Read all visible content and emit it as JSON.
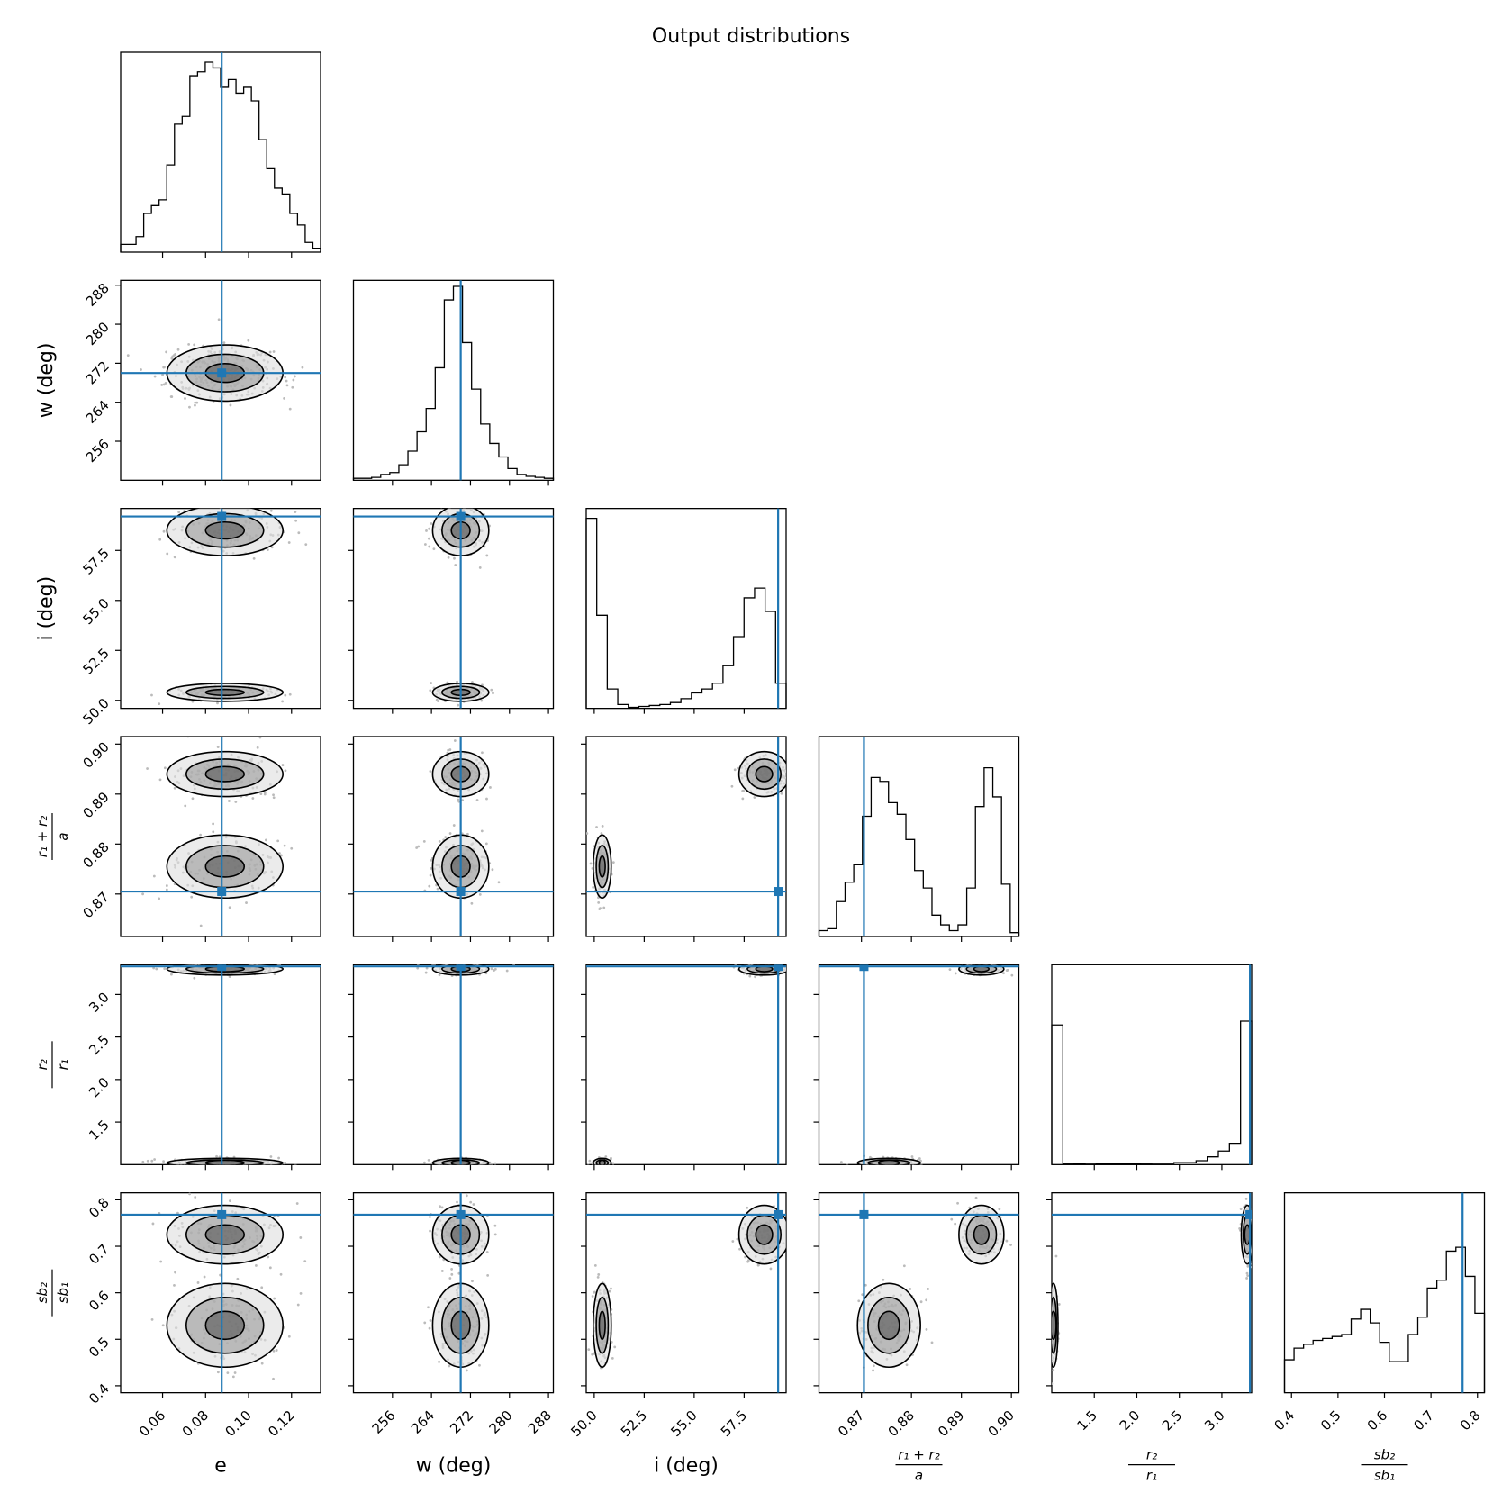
{
  "chart_data": {
    "type": "corner",
    "title": "Output distributions",
    "truth_color": "#1f77b4",
    "params": [
      {
        "key": "e",
        "label": "e",
        "range": [
          0.0405,
          0.1335
        ],
        "ticks": [
          0.06,
          0.08,
          0.1,
          0.12
        ],
        "tick_labels": [
          "0.06",
          "0.08",
          "0.10",
          "0.12"
        ],
        "truth": 0.0875,
        "modes": [
          {
            "mu": 0.089,
            "sd": 0.015,
            "w": 1
          }
        ]
      },
      {
        "key": "w",
        "label": "w (deg)",
        "range": [
          248,
          289
        ],
        "ticks": [
          256,
          264,
          272,
          280,
          288
        ],
        "tick_labels": [
          "256",
          "264",
          "272",
          "280",
          "288"
        ],
        "truth": 270,
        "modes": [
          {
            "mu": 270,
            "sd": 3.2,
            "w": 1
          }
        ]
      },
      {
        "key": "i",
        "label": "i (deg)",
        "range": [
          49.6,
          59.6
        ],
        "ticks": [
          50.0,
          52.5,
          55.0,
          57.5
        ],
        "tick_labels": [
          "50.0",
          "52.5",
          "55.0",
          "57.5"
        ],
        "truth": 59.2,
        "modes": [
          {
            "mu": 50.4,
            "sd": 0.25,
            "w": 0.45
          },
          {
            "mu": 58.5,
            "sd": 0.7,
            "w": 0.55
          }
        ]
      },
      {
        "key": "rsum",
        "label": "r₁ + r₂ / a",
        "range": [
          0.8615,
          0.9015
        ],
        "ticks": [
          0.87,
          0.88,
          0.89,
          0.9
        ],
        "tick_labels": [
          "0.87",
          "0.88",
          "0.89",
          "0.90"
        ],
        "truth": 0.8705,
        "modes": [
          {
            "mu": 0.8755,
            "sd": 0.0035,
            "w": 0.55
          },
          {
            "mu": 0.894,
            "sd": 0.0025,
            "w": 0.45
          }
        ]
      },
      {
        "key": "k",
        "label": "r₂ / r₁",
        "range": [
          1.0,
          3.35
        ],
        "ticks": [
          1.5,
          2.0,
          2.5,
          3.0
        ],
        "tick_labels": [
          "1.5",
          "2.0",
          "2.5",
          "3.0"
        ],
        "truth": 3.33,
        "modes": [
          {
            "mu": 1.02,
            "sd": 0.03,
            "w": 0.45
          },
          {
            "mu": 3.3,
            "sd": 0.04,
            "w": 0.55
          }
        ]
      },
      {
        "key": "sb",
        "label": "sb₂ / sb₁",
        "range": [
          0.385,
          0.815
        ],
        "ticks": [
          0.4,
          0.5,
          0.6,
          0.7,
          0.8
        ],
        "tick_labels": [
          "0.4",
          "0.5",
          "0.6",
          "0.7",
          "0.8"
        ],
        "truth": 0.768,
        "modes": [
          {
            "mu": 0.53,
            "sd": 0.05,
            "w": 0.45
          },
          {
            "mu": 0.725,
            "sd": 0.035,
            "w": 0.55
          }
        ]
      }
    ],
    "axis_labels": {
      "e": "e",
      "w": "w (deg)",
      "i": "i (deg)",
      "rsum": {
        "num": "r₁ + r₂",
        "den": "a"
      },
      "k": {
        "num": "r₂",
        "den": "r₁"
      },
      "sb": {
        "num": "sb₂",
        "den": "sb₁"
      }
    },
    "histograms": {
      "e": [
        0.04,
        0.04,
        0.08,
        0.2,
        0.24,
        0.27,
        0.45,
        0.66,
        0.7,
        0.91,
        0.93,
        0.98,
        0.95,
        0.85,
        0.89,
        0.82,
        0.85,
        0.78,
        0.58,
        0.43,
        0.33,
        0.3,
        0.2,
        0.14,
        0.05,
        0.02
      ],
      "w": [
        0.01,
        0.01,
        0.015,
        0.03,
        0.04,
        0.08,
        0.15,
        0.25,
        0.37,
        0.58,
        0.93,
        1.0,
        0.71,
        0.47,
        0.29,
        0.19,
        0.12,
        0.06,
        0.03,
        0.02,
        0.015,
        0.01
      ],
      "i": [
        0.98,
        0.48,
        0.1,
        0.02,
        0.005,
        0.01,
        0.015,
        0.02,
        0.03,
        0.05,
        0.08,
        0.1,
        0.13,
        0.22,
        0.37,
        0.57,
        0.62,
        0.5,
        0.13
      ],
      "rsum": [
        0.03,
        0.04,
        0.18,
        0.28,
        0.37,
        0.62,
        0.82,
        0.8,
        0.69,
        0.63,
        0.5,
        0.34,
        0.25,
        0.11,
        0.06,
        0.03,
        0.06,
        0.25,
        0.67,
        0.87,
        0.72,
        0.27,
        0.02
      ],
      "k": [
        0.72,
        0.005,
        0.003,
        0.006,
        0.003,
        0.003,
        0.003,
        0.003,
        0.005,
        0.006,
        0.006,
        0.01,
        0.01,
        0.02,
        0.04,
        0.07,
        0.11,
        0.74
      ],
      "sb": [
        0.17,
        0.23,
        0.25,
        0.27,
        0.28,
        0.29,
        0.3,
        0.38,
        0.43,
        0.36,
        0.26,
        0.16,
        0.16,
        0.3,
        0.39,
        0.54,
        0.58,
        0.73,
        0.75,
        0.6,
        0.41
      ]
    }
  }
}
